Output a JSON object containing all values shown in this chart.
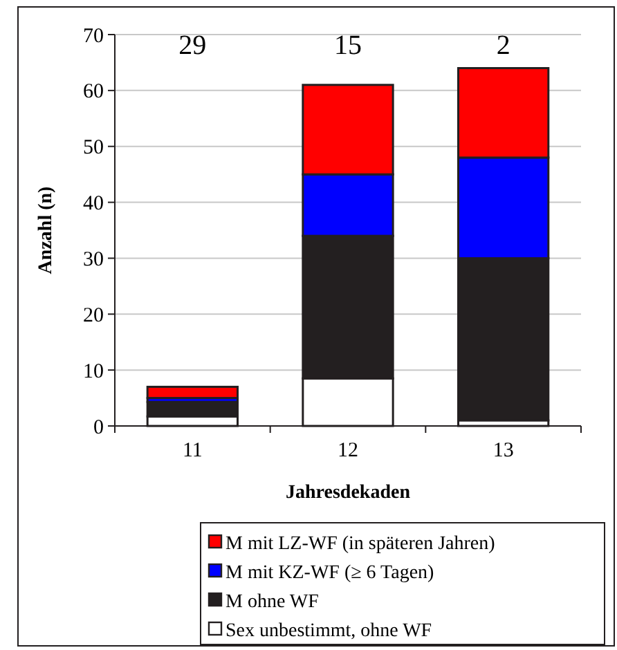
{
  "chart_data": {
    "type": "bar",
    "stacked": true,
    "categories": [
      "11",
      "12",
      "13"
    ],
    "series": [
      {
        "name": "Sex unbestimmt, ohne WF",
        "color": "#ffffff",
        "values": [
          1.7,
          8.5,
          1
        ]
      },
      {
        "name": "M ohne WF",
        "color": "#231f20",
        "values": [
          2.6,
          25.5,
          29
        ]
      },
      {
        "name": "M mit KZ-WF (≥ 6 Tagen)",
        "color": "#0000ff",
        "values": [
          0.7,
          11,
          18
        ]
      },
      {
        "name": "M mit LZ-WF (in späteren Jahren)",
        "color": "#ff0000",
        "values": [
          2,
          16,
          16
        ]
      }
    ],
    "ylim": [
      0,
      70
    ],
    "yticks": [
      0,
      10,
      20,
      30,
      40,
      50,
      60,
      70
    ],
    "grid": "y",
    "legend": "bottom",
    "xlabel": "Jahresdekaden",
    "ylabel": "Anzahl (n)",
    "annotations": [
      "29",
      "15",
      "2"
    ]
  }
}
